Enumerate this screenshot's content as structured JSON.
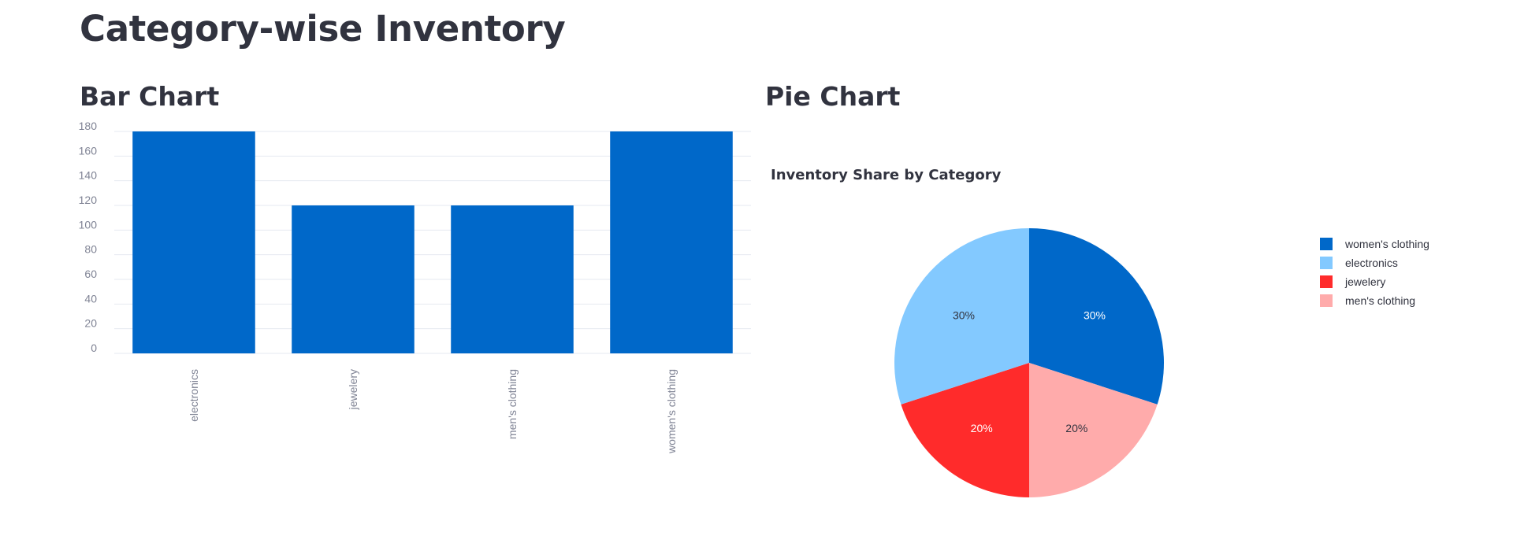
{
  "page": {
    "title": "Category-wise Inventory",
    "bar_section_title": "Bar Chart",
    "pie_section_title": "Pie Chart"
  },
  "colors": {
    "bar": "#0068c9",
    "grid": "#e6eaf1",
    "tick": "#808495"
  },
  "chart_data": [
    {
      "type": "bar",
      "title": "",
      "xlabel": "",
      "ylabel": "",
      "categories": [
        "electronics",
        "jewelery",
        "men's clothing",
        "women's clothing"
      ],
      "values": [
        180,
        120,
        120,
        180
      ],
      "ylim": [
        0,
        180
      ],
      "yticks": [
        0,
        20,
        40,
        60,
        80,
        100,
        120,
        140,
        160,
        180
      ],
      "grid": true,
      "legend": "none"
    },
    {
      "type": "pie",
      "title": "Inventory Share by Category",
      "legend_position": "right",
      "slices": [
        {
          "label": "women's clothing",
          "value": 30,
          "text": "30%",
          "color": "#0068c9",
          "text_color": "#ffffff"
        },
        {
          "label": "men's clothing",
          "value": 20,
          "text": "20%",
          "color": "#ffabab",
          "text_color": "#31333f"
        },
        {
          "label": "jewelery",
          "value": 20,
          "text": "20%",
          "color": "#ff2b2b",
          "text_color": "#ffffff"
        },
        {
          "label": "electronics",
          "value": 30,
          "text": "30%",
          "color": "#83c9ff",
          "text_color": "#31333f"
        }
      ],
      "legend_order": [
        "women's clothing",
        "electronics",
        "jewelery",
        "men's clothing"
      ]
    }
  ]
}
